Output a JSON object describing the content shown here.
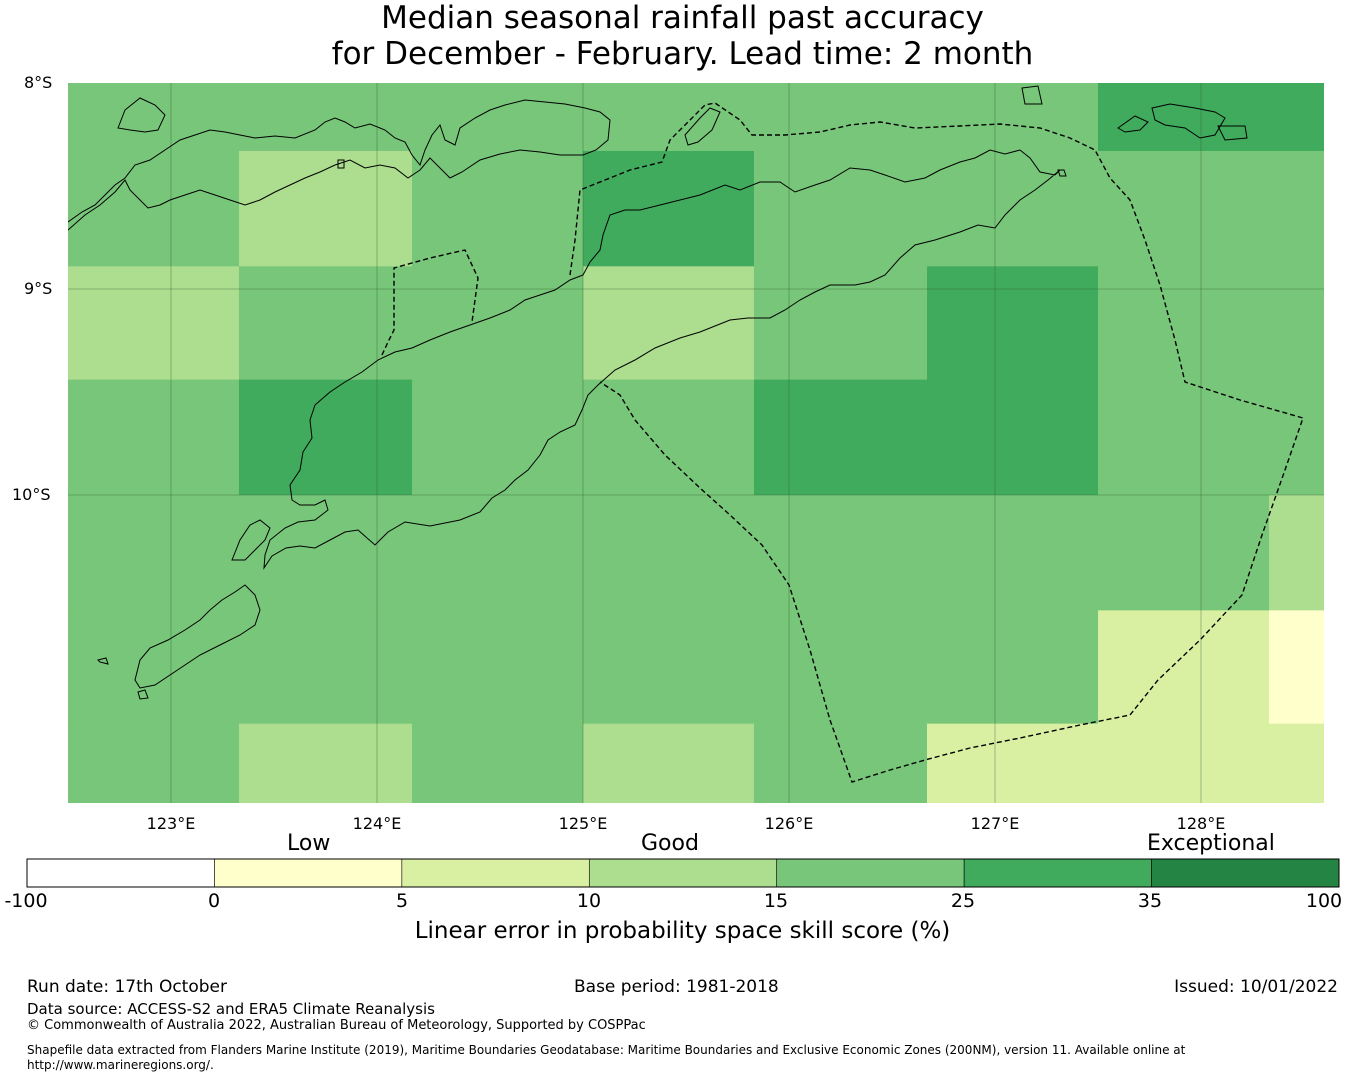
{
  "title_line1": "Median seasonal rainfall past accuracy",
  "title_line2": "for December - February. Lead time: 2 month",
  "latitude_labels": [
    "8°S",
    "9°S",
    "10°S"
  ],
  "longitude_labels": [
    "123°E",
    "124°E",
    "125°E",
    "126°E",
    "127°E",
    "128°E"
  ],
  "colorbar": {
    "categories": [
      "Low",
      "Good",
      "Exceptional"
    ],
    "ticks": [
      "-100",
      "0",
      "5",
      "10",
      "15",
      "25",
      "35",
      "100"
    ],
    "label": "Linear error in probability space skill score (%)",
    "colors": [
      "#ffffff",
      "#ffffcc",
      "#d9f0a3",
      "#addd8e",
      "#78c679",
      "#41ab5d",
      "#238443"
    ]
  },
  "grid": {
    "lon_range": [
      122.5,
      128.6
    ],
    "lat_range": [
      -11.5,
      -8.0
    ],
    "cells": [
      {
        "lon": [
          122.5,
          123.33
        ],
        "lat": [
          -8.0,
          -8.33
        ],
        "score": 20
      },
      {
        "lon": [
          123.33,
          124.17
        ],
        "lat": [
          -8.0,
          -8.33
        ],
        "score": 20
      },
      {
        "lon": [
          124.17,
          125.0
        ],
        "lat": [
          -8.0,
          -8.33
        ],
        "score": 20
      },
      {
        "lon": [
          125.0,
          125.83
        ],
        "lat": [
          -8.0,
          -8.33
        ],
        "score": 20
      },
      {
        "lon": [
          125.83,
          126.67
        ],
        "lat": [
          -8.0,
          -8.33
        ],
        "score": 20
      },
      {
        "lon": [
          126.67,
          127.5
        ],
        "lat": [
          -8.0,
          -8.33
        ],
        "score": 20
      },
      {
        "lon": [
          127.5,
          128.6
        ],
        "lat": [
          -8.0,
          -8.33
        ],
        "score": 30
      },
      {
        "lon": [
          122.5,
          123.33
        ],
        "lat": [
          -8.33,
          -8.89
        ],
        "score": 20
      },
      {
        "lon": [
          123.33,
          124.17
        ],
        "lat": [
          -8.33,
          -8.89
        ],
        "score": 12
      },
      {
        "lon": [
          124.17,
          125.0
        ],
        "lat": [
          -8.33,
          -8.89
        ],
        "score": 20
      },
      {
        "lon": [
          125.0,
          125.83
        ],
        "lat": [
          -8.33,
          -8.89
        ],
        "score": 30
      },
      {
        "lon": [
          125.83,
          126.67
        ],
        "lat": [
          -8.33,
          -8.89
        ],
        "score": 20
      },
      {
        "lon": [
          126.67,
          127.5
        ],
        "lat": [
          -8.33,
          -8.89
        ],
        "score": 20
      },
      {
        "lon": [
          127.5,
          128.6
        ],
        "lat": [
          -8.33,
          -8.89
        ],
        "score": 20
      },
      {
        "lon": [
          122.5,
          123.33
        ],
        "lat": [
          -8.89,
          -9.44
        ],
        "score": 12
      },
      {
        "lon": [
          123.33,
          124.17
        ],
        "lat": [
          -8.89,
          -9.44
        ],
        "score": 20
      },
      {
        "lon": [
          124.17,
          125.0
        ],
        "lat": [
          -8.89,
          -9.44
        ],
        "score": 20
      },
      {
        "lon": [
          125.0,
          125.83
        ],
        "lat": [
          -8.89,
          -9.44
        ],
        "score": 12
      },
      {
        "lon": [
          125.83,
          126.67
        ],
        "lat": [
          -8.89,
          -9.44
        ],
        "score": 20
      },
      {
        "lon": [
          126.67,
          127.5
        ],
        "lat": [
          -8.89,
          -9.44
        ],
        "score": 30
      },
      {
        "lon": [
          127.5,
          128.6
        ],
        "lat": [
          -8.89,
          -9.44
        ],
        "score": 20
      },
      {
        "lon": [
          122.5,
          123.33
        ],
        "lat": [
          -9.44,
          -10.0
        ],
        "score": 20
      },
      {
        "lon": [
          123.33,
          124.17
        ],
        "lat": [
          -9.44,
          -10.0
        ],
        "score": 30
      },
      {
        "lon": [
          124.17,
          125.0
        ],
        "lat": [
          -9.44,
          -10.0
        ],
        "score": 20
      },
      {
        "lon": [
          125.0,
          125.83
        ],
        "lat": [
          -9.44,
          -10.0
        ],
        "score": 20
      },
      {
        "lon": [
          125.83,
          126.67
        ],
        "lat": [
          -9.44,
          -10.0
        ],
        "score": 30
      },
      {
        "lon": [
          126.67,
          127.5
        ],
        "lat": [
          -9.44,
          -10.0
        ],
        "score": 30
      },
      {
        "lon": [
          127.5,
          128.6
        ],
        "lat": [
          -9.44,
          -10.0
        ],
        "score": 20
      },
      {
        "lon": [
          122.5,
          123.33
        ],
        "lat": [
          -10.0,
          -10.56
        ],
        "score": 20
      },
      {
        "lon": [
          123.33,
          124.17
        ],
        "lat": [
          -10.0,
          -10.56
        ],
        "score": 20
      },
      {
        "lon": [
          124.17,
          125.0
        ],
        "lat": [
          -10.0,
          -10.56
        ],
        "score": 20
      },
      {
        "lon": [
          125.0,
          125.83
        ],
        "lat": [
          -10.0,
          -10.56
        ],
        "score": 20
      },
      {
        "lon": [
          125.83,
          126.67
        ],
        "lat": [
          -10.0,
          -10.56
        ],
        "score": 20
      },
      {
        "lon": [
          126.67,
          127.5
        ],
        "lat": [
          -10.0,
          -10.56
        ],
        "score": 20
      },
      {
        "lon": [
          127.5,
          128.33
        ],
        "lat": [
          -10.0,
          -10.56
        ],
        "score": 20
      },
      {
        "lon": [
          128.33,
          128.6
        ],
        "lat": [
          -10.0,
          -10.56
        ],
        "score": 12
      },
      {
        "lon": [
          122.5,
          123.33
        ],
        "lat": [
          -10.56,
          -11.11
        ],
        "score": 20
      },
      {
        "lon": [
          123.33,
          124.17
        ],
        "lat": [
          -10.56,
          -11.11
        ],
        "score": 20
      },
      {
        "lon": [
          124.17,
          125.0
        ],
        "lat": [
          -10.56,
          -11.11
        ],
        "score": 20
      },
      {
        "lon": [
          125.0,
          125.83
        ],
        "lat": [
          -10.56,
          -11.11
        ],
        "score": 20
      },
      {
        "lon": [
          125.83,
          126.67
        ],
        "lat": [
          -10.56,
          -11.11
        ],
        "score": 20
      },
      {
        "lon": [
          126.67,
          127.5
        ],
        "lat": [
          -10.56,
          -11.11
        ],
        "score": 20
      },
      {
        "lon": [
          127.5,
          128.33
        ],
        "lat": [
          -10.56,
          -11.11
        ],
        "score": 7
      },
      {
        "lon": [
          128.33,
          128.6
        ],
        "lat": [
          -10.56,
          -11.11
        ],
        "score": 2
      },
      {
        "lon": [
          122.5,
          123.33
        ],
        "lat": [
          -11.11,
          -11.5
        ],
        "score": 20
      },
      {
        "lon": [
          123.33,
          124.17
        ],
        "lat": [
          -11.11,
          -11.5
        ],
        "score": 12
      },
      {
        "lon": [
          124.17,
          125.0
        ],
        "lat": [
          -11.11,
          -11.5
        ],
        "score": 20
      },
      {
        "lon": [
          125.0,
          125.83
        ],
        "lat": [
          -11.11,
          -11.5
        ],
        "score": 12
      },
      {
        "lon": [
          125.83,
          126.67
        ],
        "lat": [
          -11.11,
          -11.5
        ],
        "score": 20
      },
      {
        "lon": [
          126.67,
          127.5
        ],
        "lat": [
          -11.11,
          -11.5
        ],
        "score": 7
      },
      {
        "lon": [
          127.5,
          128.6
        ],
        "lat": [
          -11.11,
          -11.5
        ],
        "score": 7
      }
    ]
  },
  "footer": {
    "run_date": "Run date: 17th October",
    "base_period": "Base period: 1981-2018",
    "issued": "Issued: 10/01/2022",
    "data_source": "Data source: ACCESS-S2 and ERA5 Climate Reanalysis",
    "copyright": "© Commonwealth of Australia 2022, Australian Bureau of Meteorology, Supported by COSPPac",
    "shapefile_line1": "Shapefile data extracted from Flanders Marine Institute (2019), Maritime Boundaries Geodatabase: Maritime Boundaries and Exclusive Economic Zones (200NM), version 11. Available online at",
    "shapefile_line2": "http://www.marineregions.org/."
  }
}
